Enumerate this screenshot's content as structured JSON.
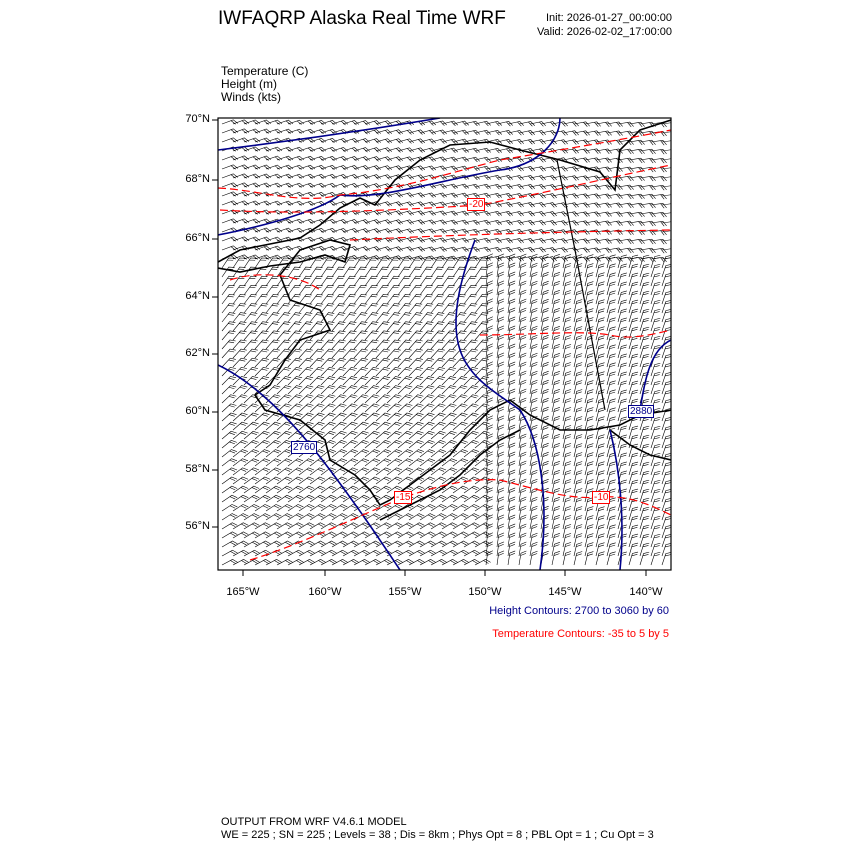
{
  "header": {
    "title": "IWFAQRP Alaska Real Time WRF",
    "init": "Init: 2026-01-27_00:00:00",
    "valid": "Valid: 2026-02-02_17:00:00"
  },
  "fields": [
    {
      "label": "Temperature   (C)"
    },
    {
      "label": "Height   (m)"
    },
    {
      "label": "Winds   (kts)"
    }
  ],
  "map": {
    "lat_ticks": [
      "70°N",
      "68°N",
      "66°N",
      "64°N",
      "62°N",
      "60°N",
      "58°N",
      "56°N"
    ],
    "lon_ticks": [
      "165°W",
      "160°W",
      "155°W",
      "150°W",
      "145°W",
      "140°W"
    ],
    "contour_labels": {
      "height": [
        "2760",
        "2880"
      ],
      "temperature": [
        "-20",
        "-15",
        "-10"
      ]
    },
    "colors": {
      "height": "#00008b",
      "temperature": "#ff0000",
      "coast": "#000000",
      "barbs": "#000000"
    }
  },
  "legend": {
    "height": "Height Contours: 2700 to 3060 by 60",
    "temperature": "Temperature Contours: -35 to 5 by 5"
  },
  "footer": {
    "line1": "OUTPUT FROM WRF V4.6.1 MODEL",
    "line2": "WE = 225 ; SN = 225 ; Levels = 38 ; Dis = 8km ; Phys Opt = 8 ; PBL Opt = 1 ; Cu Opt = 3"
  }
}
